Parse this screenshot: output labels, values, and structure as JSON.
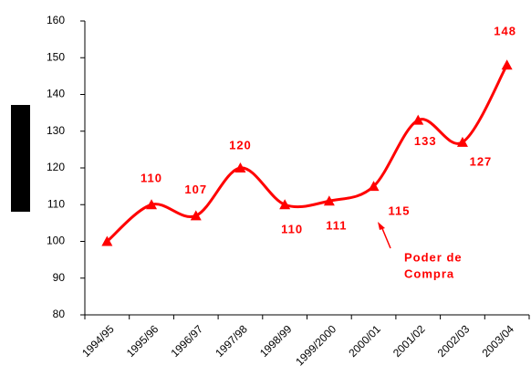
{
  "chart_data": {
    "type": "line",
    "categories": [
      "1994/95",
      "1995/96",
      "1996/97",
      "1997/98",
      "1998/99",
      "1999/2000",
      "2000/01",
      "2001/02",
      "2002/03",
      "2003/04"
    ],
    "series": [
      {
        "name": "Poder de Compra",
        "color": "#ff0000",
        "values": [
          100,
          110,
          107,
          120,
          110,
          111,
          115,
          133,
          127,
          148
        ],
        "value_labels": [
          null,
          "110",
          "107",
          "120",
          "110",
          "111",
          "115",
          "133",
          "127",
          "148"
        ]
      }
    ],
    "annotation": [
      "Poder de",
      "Compra"
    ],
    "ylim": [
      80,
      160
    ],
    "yticks": [
      80,
      90,
      100,
      110,
      120,
      130,
      140,
      150,
      160
    ],
    "grid": false
  }
}
